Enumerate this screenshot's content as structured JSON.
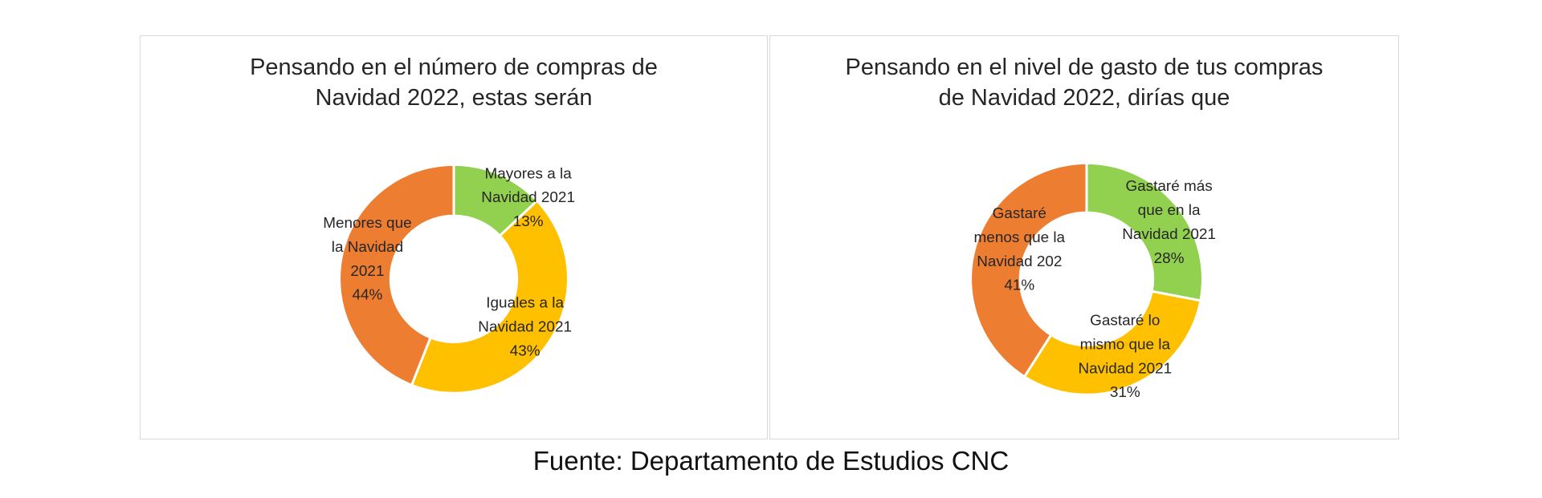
{
  "chart_data": [
    {
      "type": "pie",
      "title": [
        "Pensando en el número de compras de",
        "Navidad 2022, estas serán"
      ],
      "slices": [
        {
          "label": [
            "Mayores a la",
            "Navidad 2021"
          ],
          "value": 13,
          "value_label": "13%",
          "color": "#92d050"
        },
        {
          "label": [
            "Iguales a la",
            "Navidad 2021"
          ],
          "value": 43,
          "value_label": "43%",
          "color": "#ffc000"
        },
        {
          "label": [
            "Menores que",
            "la Navidad",
            "2021"
          ],
          "value": 44,
          "value_label": "44%",
          "color": "#ed7d31"
        }
      ]
    },
    {
      "type": "pie",
      "title": [
        "Pensando en el nivel de gasto de tus compras",
        "de Navidad 2022, dirías que"
      ],
      "slices": [
        {
          "label": [
            "Gastaré más",
            "que en la",
            "Navidad 2021"
          ],
          "value": 28,
          "value_label": "28%",
          "color": "#92d050"
        },
        {
          "label": [
            "Gastaré lo",
            "mismo que la",
            "Navidad 2021"
          ],
          "value": 31,
          "value_label": "31%",
          "color": "#ffc000"
        },
        {
          "label": [
            "Gastaré",
            "menos que la",
            "Navidad 202"
          ],
          "value": 41,
          "value_label": "41%",
          "color": "#ed7d31"
        }
      ]
    }
  ],
  "footer": {
    "source": "Fuente: Departamento de Estudios CNC"
  }
}
